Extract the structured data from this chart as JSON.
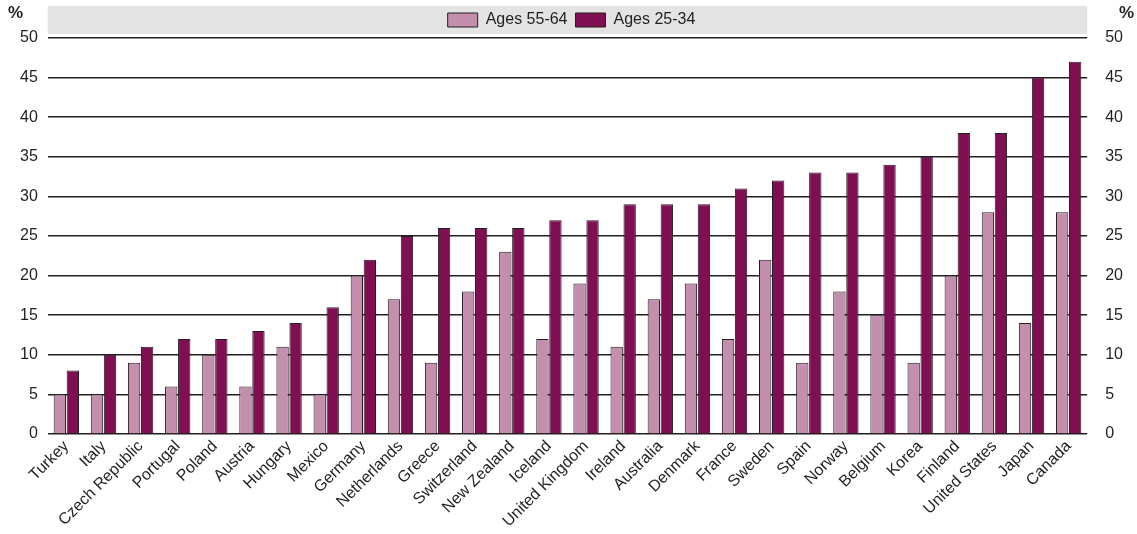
{
  "chart_data": {
    "type": "bar",
    "categories": [
      "Turkey",
      "Italy",
      "Czech Republic",
      "Portugal",
      "Poland",
      "Austria",
      "Hungary",
      "Mexico",
      "Germany",
      "Netherlands",
      "Greece",
      "Switzerland",
      "New Zealand",
      "Iceland",
      "United Kingdom",
      "Ireland",
      "Australia",
      "Denmark",
      "France",
      "Sweden",
      "Spain",
      "Norway",
      "Belgium",
      "Korea",
      "Finland",
      "United States",
      "Japan",
      "Canada"
    ],
    "series": [
      {
        "name": "Ages 55-64",
        "color": "#c48fad",
        "values": [
          5,
          5,
          9,
          6,
          10,
          6,
          11,
          5,
          20,
          17,
          9,
          18,
          23,
          12,
          19,
          11,
          17,
          19,
          12,
          22,
          9,
          18,
          15,
          9,
          20,
          28,
          14,
          28
        ]
      },
      {
        "name": "Ages 25-34",
        "color": "#7f0e52",
        "values": [
          8,
          10,
          11,
          12,
          12,
          13,
          14,
          16,
          22,
          25,
          26,
          26,
          26,
          27,
          27,
          29,
          29,
          29,
          31,
          32,
          33,
          33,
          34,
          35,
          38,
          38,
          45,
          47
        ]
      }
    ],
    "ylabel": "%",
    "y2label": "%",
    "ylim": [
      0,
      50
    ],
    "yticks": [
      0,
      5,
      10,
      15,
      20,
      25,
      30,
      35,
      40,
      45,
      50
    ],
    "y2lim": [
      0,
      50
    ],
    "y2ticks": [
      0,
      5,
      10,
      15,
      20,
      25,
      30,
      35,
      40,
      45,
      50
    ],
    "grid": "y",
    "legend": "top"
  }
}
